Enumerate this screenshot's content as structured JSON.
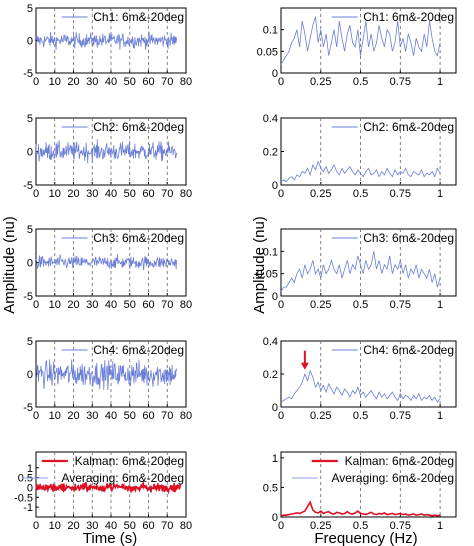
{
  "colors": {
    "channel": "#6b7fd7",
    "kalman": "#dd1122",
    "averaging": "#8aa0e8",
    "arrow": "#dd1122",
    "grid": "#666666"
  },
  "axis_labels": {
    "left_y": "Amplitude (nu)",
    "right_y": "Amplitude (nu)",
    "left_x": "Time (s)",
    "right_x": "Frequency (Hz)"
  },
  "chart_data": [
    {
      "id": "time-ch1",
      "type": "line",
      "panel": "time",
      "legend": [
        "Ch1: 6m&-20deg"
      ],
      "x_range": [
        0,
        80
      ],
      "data_x_end": 75,
      "ylim": [
        -5,
        5
      ],
      "yticks": [
        "-5",
        "0",
        "5"
      ],
      "xticks": [
        "0",
        "10",
        "20",
        "30",
        "40",
        "50",
        "60",
        "70",
        "80"
      ],
      "series_stats": {
        "mean": 0,
        "std": 0.8
      }
    },
    {
      "id": "freq-ch1",
      "type": "line",
      "panel": "freq",
      "legend": [
        "Ch1: 6m&-20deg"
      ],
      "x_range": [
        0,
        1.1
      ],
      "data_x_end": 1.0,
      "ylim": [
        0,
        0.15
      ],
      "yticks": [
        "0",
        "0.05",
        "0.1"
      ],
      "xticks": [
        "0",
        "0.25",
        "0.5",
        "0.75",
        "1"
      ],
      "values": [
        0.02,
        0.03,
        0.04,
        0.05,
        0.07,
        0.08,
        0.1,
        0.06,
        0.12,
        0.09,
        0.05,
        0.08,
        0.11,
        0.13,
        0.07,
        0.1,
        0.06,
        0.09,
        0.04,
        0.07,
        0.1,
        0.06,
        0.12,
        0.08,
        0.05,
        0.09,
        0.11,
        0.07,
        0.06,
        0.1,
        0.04,
        0.08,
        0.12,
        0.06,
        0.09,
        0.05,
        0.07,
        0.11,
        0.08,
        0.06,
        0.1,
        0.09,
        0.05,
        0.07,
        0.12,
        0.06,
        0.08,
        0.05,
        0.09,
        0.07,
        0.04,
        0.08,
        0.06,
        0.05,
        0.09,
        0.06,
        0.12,
        0.08,
        0.05,
        0.04,
        0.07
      ]
    },
    {
      "id": "time-ch2",
      "type": "line",
      "panel": "time",
      "legend": [
        "Ch2: 6m&-20deg"
      ],
      "x_range": [
        0,
        80
      ],
      "data_x_end": 75,
      "ylim": [
        -5,
        5
      ],
      "yticks": [
        "-5",
        "0",
        "5"
      ],
      "xticks": [
        "0",
        "10",
        "20",
        "30",
        "40",
        "50",
        "60",
        "70",
        "80"
      ],
      "series_stats": {
        "mean": 0,
        "std": 1.0
      }
    },
    {
      "id": "freq-ch2",
      "type": "line",
      "panel": "freq",
      "legend": [
        "Ch2: 6m&-20deg"
      ],
      "x_range": [
        0,
        1.1
      ],
      "data_x_end": 1.0,
      "ylim": [
        0,
        0.4
      ],
      "yticks": [
        "0",
        "0.2",
        "0.4"
      ],
      "xticks": [
        "0",
        "0.25",
        "0.5",
        "0.75",
        "1"
      ],
      "values": [
        0.02,
        0.03,
        0.02,
        0.04,
        0.05,
        0.03,
        0.06,
        0.05,
        0.08,
        0.07,
        0.1,
        0.06,
        0.12,
        0.09,
        0.14,
        0.1,
        0.08,
        0.11,
        0.07,
        0.09,
        0.12,
        0.08,
        0.06,
        0.1,
        0.07,
        0.09,
        0.11,
        0.08,
        0.06,
        0.09,
        0.07,
        0.05,
        0.08,
        0.1,
        0.06,
        0.07,
        0.09,
        0.05,
        0.08,
        0.06,
        0.1,
        0.07,
        0.05,
        0.09,
        0.06,
        0.08,
        0.07,
        0.1,
        0.06,
        0.05,
        0.08,
        0.07,
        0.06,
        0.09,
        0.05,
        0.07,
        0.06,
        0.08,
        0.05,
        0.1,
        0.07
      ]
    },
    {
      "id": "time-ch3",
      "type": "line",
      "panel": "time",
      "legend": [
        "Ch3: 6m&-20deg"
      ],
      "x_range": [
        0,
        80
      ],
      "data_x_end": 75,
      "ylim": [
        -5,
        5
      ],
      "yticks": [
        "-5",
        "0",
        "5"
      ],
      "xticks": [
        "0",
        "10",
        "20",
        "30",
        "40",
        "50",
        "60",
        "70",
        "80"
      ],
      "series_stats": {
        "mean": 0,
        "std": 0.7
      }
    },
    {
      "id": "freq-ch3",
      "type": "line",
      "panel": "freq",
      "legend": [
        "Ch3: 6m&-20deg"
      ],
      "x_range": [
        0,
        1.1
      ],
      "data_x_end": 1.0,
      "ylim": [
        0,
        0.15
      ],
      "yticks": [
        "0",
        "0.05",
        "0.1"
      ],
      "xticks": [
        "0",
        "0.25",
        "0.5",
        "0.75",
        "1"
      ],
      "values": [
        0.01,
        0.02,
        0.02,
        0.03,
        0.04,
        0.03,
        0.05,
        0.06,
        0.04,
        0.07,
        0.05,
        0.06,
        0.08,
        0.05,
        0.06,
        0.04,
        0.07,
        0.05,
        0.06,
        0.08,
        0.06,
        0.05,
        0.07,
        0.04,
        0.06,
        0.08,
        0.05,
        0.07,
        0.06,
        0.09,
        0.07,
        0.05,
        0.08,
        0.06,
        0.07,
        0.1,
        0.06,
        0.08,
        0.05,
        0.07,
        0.06,
        0.09,
        0.05,
        0.07,
        0.06,
        0.08,
        0.05,
        0.07,
        0.04,
        0.06,
        0.05,
        0.07,
        0.04,
        0.06,
        0.05,
        0.04,
        0.06,
        0.03,
        0.05,
        0.02,
        0.04
      ]
    },
    {
      "id": "time-ch4",
      "type": "line",
      "panel": "time",
      "legend": [
        "Ch4: 6m&-20deg"
      ],
      "x_range": [
        0,
        80
      ],
      "data_x_end": 75,
      "ylim": [
        -5,
        5
      ],
      "yticks": [
        "-5",
        "0",
        "5"
      ],
      "xticks": [
        "0",
        "10",
        "20",
        "30",
        "40",
        "50",
        "60",
        "70",
        "80"
      ],
      "series_stats": {
        "mean": 0,
        "std": 1.4
      }
    },
    {
      "id": "freq-ch4",
      "type": "line",
      "panel": "freq",
      "legend": [
        "Ch4: 6m&-20deg"
      ],
      "x_range": [
        0,
        1.1
      ],
      "data_x_end": 1.0,
      "ylim": [
        0,
        0.4
      ],
      "yticks": [
        "0",
        "0.2",
        "0.4"
      ],
      "xticks": [
        "0",
        "0.25",
        "0.5",
        "0.75",
        "1"
      ],
      "arrow_at_x": 0.15,
      "values": [
        0.03,
        0.04,
        0.05,
        0.06,
        0.05,
        0.08,
        0.1,
        0.12,
        0.15,
        0.2,
        0.16,
        0.22,
        0.18,
        0.12,
        0.15,
        0.1,
        0.13,
        0.09,
        0.14,
        0.11,
        0.08,
        0.12,
        0.1,
        0.07,
        0.11,
        0.09,
        0.06,
        0.1,
        0.08,
        0.12,
        0.07,
        0.09,
        0.06,
        0.08,
        0.1,
        0.07,
        0.05,
        0.09,
        0.06,
        0.08,
        0.05,
        0.07,
        0.09,
        0.06,
        0.04,
        0.08,
        0.05,
        0.07,
        0.06,
        0.04,
        0.07,
        0.05,
        0.08,
        0.04,
        0.06,
        0.05,
        0.07,
        0.04,
        0.06,
        0.03,
        0.05
      ]
    },
    {
      "id": "time-combined",
      "type": "line",
      "panel": "time",
      "legend": [
        "Kalman: 6m&-20deg",
        "Averaging: 6m&-20deg"
      ],
      "x_range": [
        0,
        80
      ],
      "data_x_end": 77,
      "ylim": [
        -1.5,
        1.8
      ],
      "yticks": [
        "-1",
        "-0.5",
        "0",
        "0.5",
        "1"
      ],
      "xticks": [
        "0",
        "10",
        "20",
        "30",
        "40",
        "50",
        "60",
        "70",
        "80"
      ],
      "series_stats": {
        "mean": 0,
        "std": 0.15
      }
    },
    {
      "id": "freq-combined",
      "type": "line",
      "panel": "freq",
      "legend": [
        "Kalman: 6m&-20deg",
        "Averaging: 6m&-20deg"
      ],
      "x_range": [
        0,
        1.1
      ],
      "data_x_end": 1.0,
      "ylim": [
        0,
        1.1
      ],
      "yticks": [
        "0",
        "0.5",
        "1"
      ],
      "xticks": [
        "0",
        "0.25",
        "0.5",
        "0.75",
        "1"
      ],
      "values": [
        0.02,
        0.03,
        0.03,
        0.04,
        0.05,
        0.06,
        0.07,
        0.06,
        0.08,
        0.1,
        0.18,
        0.25,
        0.12,
        0.08,
        0.07,
        0.1,
        0.06,
        0.08,
        0.09,
        0.06,
        0.05,
        0.08,
        0.07,
        0.05,
        0.06,
        0.09,
        0.06,
        0.05,
        0.07,
        0.1,
        0.06,
        0.05,
        0.04,
        0.06,
        0.08,
        0.05,
        0.04,
        0.06,
        0.05,
        0.07,
        0.04,
        0.05,
        0.06,
        0.04,
        0.05,
        0.06,
        0.04,
        0.05,
        0.03,
        0.04,
        0.05,
        0.03,
        0.04,
        0.05,
        0.03,
        0.04,
        0.03,
        0.02,
        0.03,
        0.02,
        0.03
      ]
    }
  ]
}
